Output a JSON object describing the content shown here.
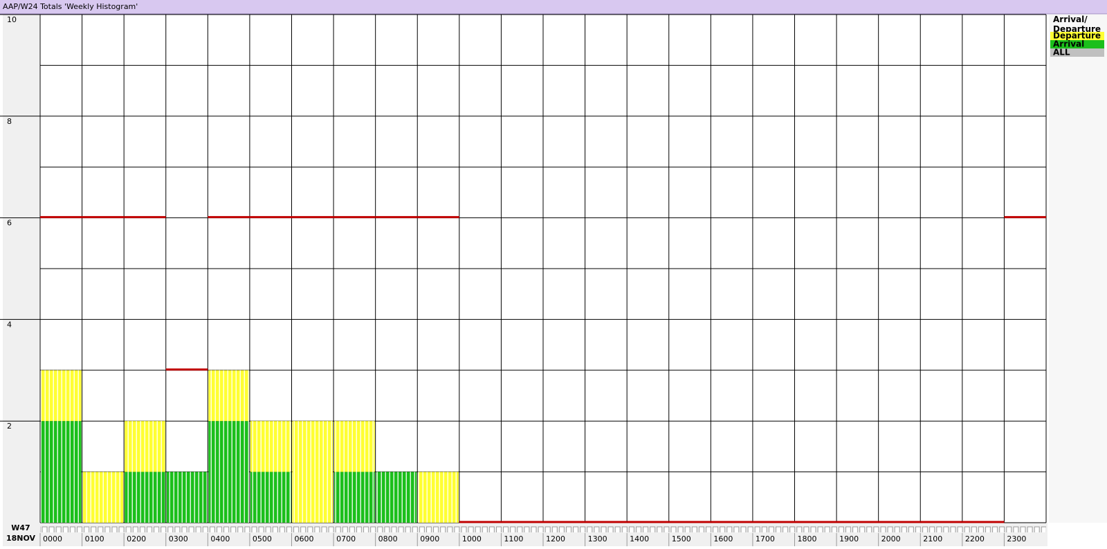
{
  "chart_data": {
    "type": "stacked-bar",
    "title": "AAP/W24 Totals 'Weekly Histogram'",
    "week": "W47",
    "date": "18NOV",
    "categories": [
      "0000",
      "0100",
      "0200",
      "0300",
      "0400",
      "0500",
      "0600",
      "0700",
      "0800",
      "0900",
      "1000",
      "1100",
      "1200",
      "1300",
      "1400",
      "1500",
      "1600",
      "1700",
      "1800",
      "1900",
      "2000",
      "2100",
      "2200",
      "2300"
    ],
    "series": [
      {
        "name": "Departure",
        "color": "#ffff33",
        "values": [
          1,
          1,
          1,
          0,
          1,
          1,
          2,
          1,
          0,
          1,
          0,
          0,
          0,
          0,
          0,
          0,
          0,
          0,
          0,
          0,
          0,
          0,
          0,
          0
        ]
      },
      {
        "name": "Arrival",
        "color": "#1bbf1b",
        "values": [
          2,
          0,
          1,
          1,
          2,
          1,
          0,
          1,
          1,
          0,
          0,
          0,
          0,
          0,
          0,
          0,
          0,
          0,
          0,
          0,
          0,
          0,
          0,
          0
        ]
      }
    ],
    "limit_line": {
      "color": "#c00000",
      "values": [
        6,
        6,
        6,
        3,
        6,
        6,
        6,
        6,
        6,
        6,
        0,
        0,
        0,
        0,
        0,
        0,
        0,
        0,
        0,
        0,
        0,
        0,
        0,
        6
      ]
    },
    "legend_title": "Arrival/ Departure",
    "legend_other": {
      "name": "ALL",
      "color": "#c0c0c0"
    },
    "ylim": [
      0,
      10
    ],
    "yticks": [
      2,
      4,
      6,
      8,
      10
    ],
    "grid": true
  }
}
